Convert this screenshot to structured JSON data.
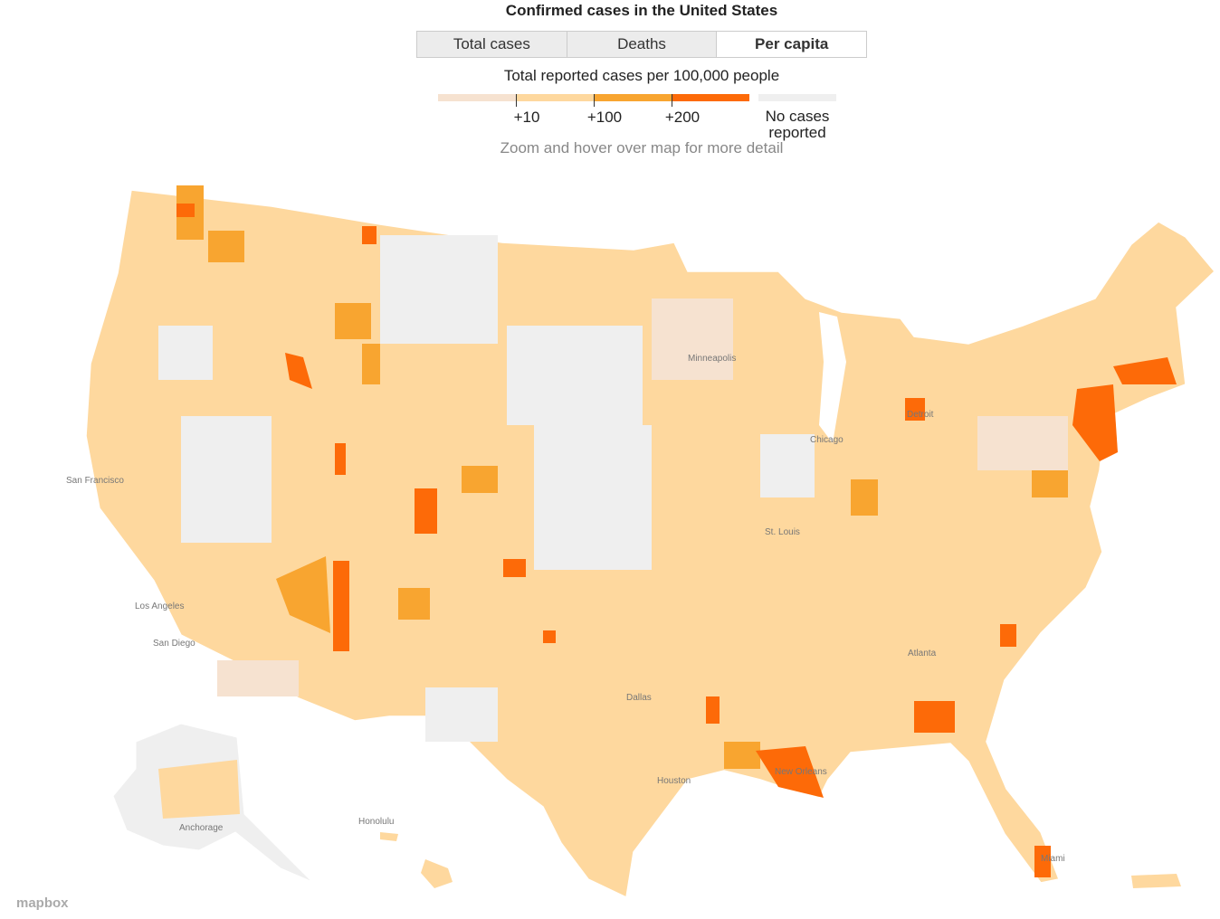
{
  "header": {
    "title": "Confirmed cases in the United States"
  },
  "tabs": [
    "Total cases",
    "Deaths",
    "Per capita"
  ],
  "legend": {
    "title": "Total reported cases per 100,000 people",
    "colors": [
      "#f6e2d0",
      "#fed89e",
      "#f8a530",
      "#fd6a08"
    ],
    "ticks": [
      "+10",
      "+100",
      "+200"
    ],
    "no_data": {
      "label": "No cases reported",
      "color": "#efefef"
    }
  },
  "note": "Zoom and hover over map for more detail",
  "cities": [
    "Minneapolis",
    "Detroit",
    "Chicago",
    "San Francisco",
    "St. Louis",
    "Los Angeles",
    "San Diego",
    "Atlanta",
    "Dallas",
    "Houston",
    "New Orleans",
    "Honolulu",
    "Anchorage",
    "Miami"
  ],
  "attribution": "mapbox"
}
